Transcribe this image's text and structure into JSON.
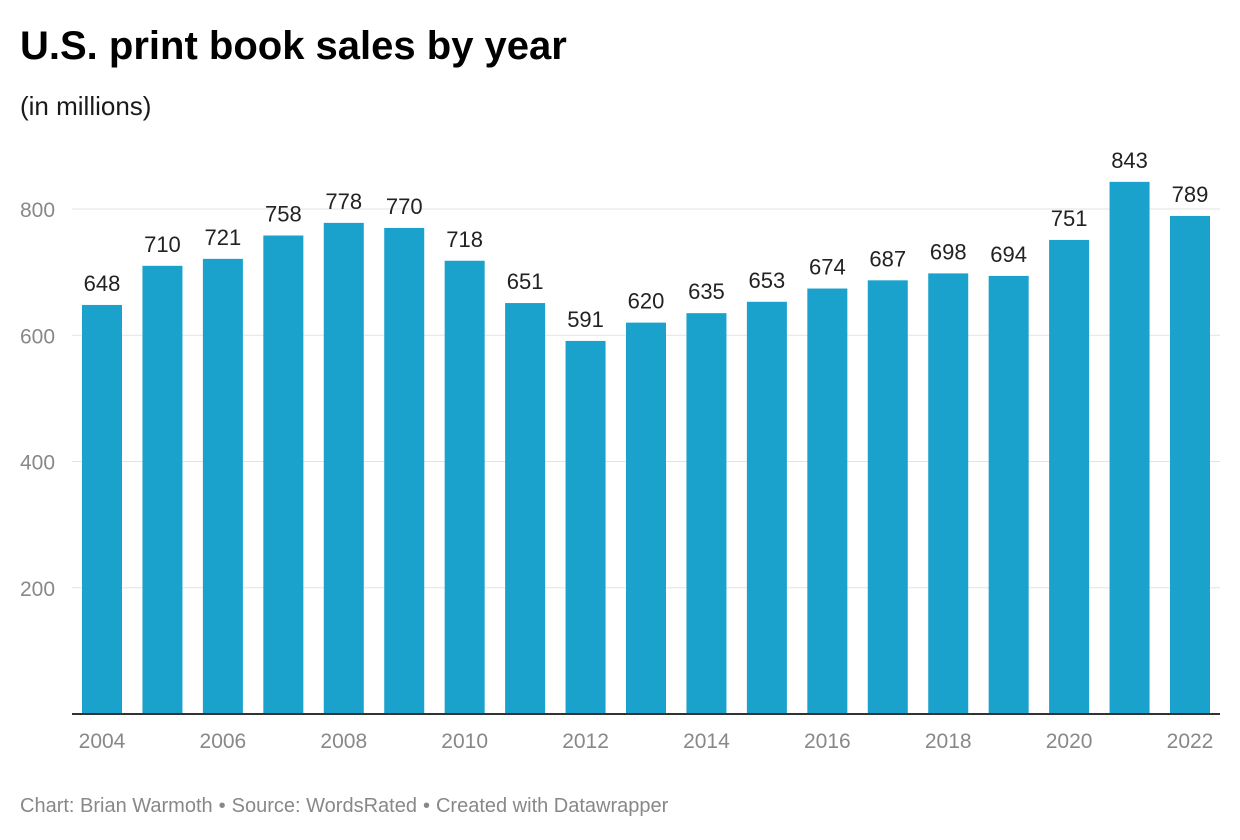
{
  "title": "U.S. print book sales by year",
  "subtitle": "(in millions)",
  "footer": {
    "chart_credit": "Chart: Brian Warmoth",
    "source": "Source: WordsRated",
    "created_with": "Created with Datawrapper",
    "separator": "•"
  },
  "colors": {
    "bar": "#1aa1cc",
    "grid": "#e3e3e3",
    "axis": "#333333",
    "tick_label": "#888888",
    "value_label": "#222222"
  },
  "chart_data": {
    "type": "bar",
    "title": "U.S. print book sales by year",
    "subtitle": "(in millions)",
    "x": [
      2004,
      2005,
      2006,
      2007,
      2008,
      2009,
      2010,
      2011,
      2012,
      2013,
      2014,
      2015,
      2016,
      2017,
      2018,
      2019,
      2020,
      2021,
      2022
    ],
    "values": [
      648,
      710,
      721,
      758,
      778,
      770,
      718,
      651,
      591,
      620,
      635,
      653,
      674,
      687,
      698,
      694,
      751,
      843,
      789
    ],
    "x_tick_labels": [
      "2004",
      "2006",
      "2008",
      "2010",
      "2012",
      "2014",
      "2016",
      "2018",
      "2020",
      "2022"
    ],
    "y_ticks": [
      200,
      400,
      600,
      800
    ],
    "ylim": [
      0,
      800
    ],
    "grid": true,
    "data_labels": true,
    "legend": "none"
  }
}
